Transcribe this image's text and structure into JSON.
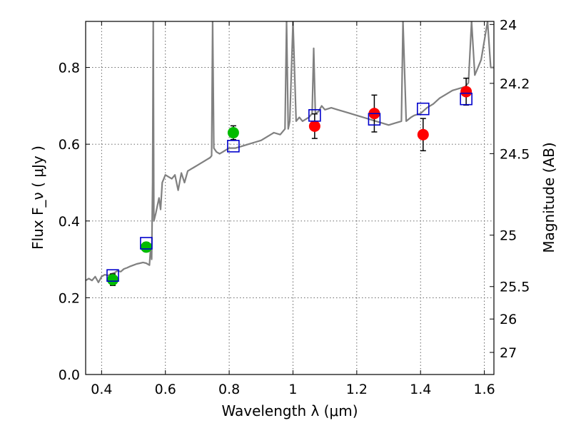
{
  "chart_data": {
    "type": "scatter",
    "title": "",
    "xlabel": "Wavelength  λ (μm)",
    "ylabel": "Flux  F_ν  ( μJy )",
    "y2label": "Magnitude (AB)",
    "xlim": [
      0.35,
      1.63
    ],
    "ylim": [
      0.0,
      0.92
    ],
    "grid": true,
    "x_ticks": [
      0.4,
      0.6,
      0.8,
      1.0,
      1.2,
      1.4,
      1.6
    ],
    "x_tick_labels": [
      "0.4",
      "0.6",
      "0.8",
      "1",
      "1.2",
      "1.4",
      "1.6"
    ],
    "y_ticks": [
      0.0,
      0.2,
      0.4,
      0.6,
      0.8
    ],
    "y_tick_labels": [
      "0.0",
      "0.2",
      "0.4",
      "0.6",
      "0.8"
    ],
    "y2_ticks": [
      {
        "label": "24",
        "value": 24.0
      },
      {
        "label": "24.2",
        "value": 24.2
      },
      {
        "label": "24.5",
        "value": 24.5
      },
      {
        "label": "25",
        "value": 25.0
      },
      {
        "label": "25.5",
        "value": 25.5
      },
      {
        "label": "26",
        "value": 26.0
      },
      {
        "label": "27",
        "value": 27.0
      }
    ],
    "model_spectrum": {
      "color": "#808080",
      "points": [
        [
          0.35,
          0.245
        ],
        [
          0.36,
          0.25
        ],
        [
          0.37,
          0.245
        ],
        [
          0.38,
          0.255
        ],
        [
          0.39,
          0.24
        ],
        [
          0.4,
          0.255
        ],
        [
          0.41,
          0.26
        ],
        [
          0.42,
          0.258
        ],
        [
          0.43,
          0.262
        ],
        [
          0.44,
          0.265
        ],
        [
          0.45,
          0.27
        ],
        [
          0.46,
          0.268
        ],
        [
          0.47,
          0.275
        ],
        [
          0.48,
          0.278
        ],
        [
          0.49,
          0.282
        ],
        [
          0.5,
          0.285
        ],
        [
          0.51,
          0.288
        ],
        [
          0.52,
          0.29
        ],
        [
          0.53,
          0.292
        ],
        [
          0.54,
          0.29
        ],
        [
          0.55,
          0.285
        ],
        [
          0.552,
          0.31
        ],
        [
          0.555,
          0.34
        ],
        [
          0.557,
          0.3
        ],
        [
          0.56,
          0.5
        ],
        [
          0.562,
          0.92
        ],
        [
          0.564,
          0.4
        ],
        [
          0.57,
          0.42
        ],
        [
          0.575,
          0.44
        ],
        [
          0.58,
          0.46
        ],
        [
          0.585,
          0.43
        ],
        [
          0.59,
          0.5
        ],
        [
          0.6,
          0.52
        ],
        [
          0.61,
          0.515
        ],
        [
          0.62,
          0.51
        ],
        [
          0.63,
          0.52
        ],
        [
          0.64,
          0.48
        ],
        [
          0.65,
          0.525
        ],
        [
          0.66,
          0.5
        ],
        [
          0.67,
          0.53
        ],
        [
          0.68,
          0.535
        ],
        [
          0.69,
          0.54
        ],
        [
          0.7,
          0.545
        ],
        [
          0.71,
          0.55
        ],
        [
          0.72,
          0.555
        ],
        [
          0.73,
          0.56
        ],
        [
          0.74,
          0.565
        ],
        [
          0.745,
          0.57
        ],
        [
          0.748,
          0.92
        ],
        [
          0.752,
          0.59
        ],
        [
          0.76,
          0.58
        ],
        [
          0.77,
          0.575
        ],
        [
          0.78,
          0.58
        ],
        [
          0.79,
          0.585
        ],
        [
          0.8,
          0.59
        ],
        [
          0.82,
          0.59
        ],
        [
          0.84,
          0.595
        ],
        [
          0.86,
          0.6
        ],
        [
          0.88,
          0.605
        ],
        [
          0.9,
          0.61
        ],
        [
          0.92,
          0.62
        ],
        [
          0.94,
          0.63
        ],
        [
          0.96,
          0.625
        ],
        [
          0.975,
          0.64
        ],
        [
          0.98,
          0.92
        ],
        [
          0.985,
          0.64
        ],
        [
          0.99,
          0.66
        ],
        [
          1.0,
          0.92
        ],
        [
          1.01,
          0.66
        ],
        [
          1.02,
          0.67
        ],
        [
          1.03,
          0.66
        ],
        [
          1.04,
          0.665
        ],
        [
          1.05,
          0.67
        ],
        [
          1.06,
          0.68
        ],
        [
          1.065,
          0.85
        ],
        [
          1.07,
          0.68
        ],
        [
          1.08,
          0.685
        ],
        [
          1.09,
          0.7
        ],
        [
          1.1,
          0.69
        ],
        [
          1.12,
          0.695
        ],
        [
          1.14,
          0.69
        ],
        [
          1.16,
          0.685
        ],
        [
          1.18,
          0.68
        ],
        [
          1.2,
          0.675
        ],
        [
          1.22,
          0.67
        ],
        [
          1.24,
          0.665
        ],
        [
          1.26,
          0.66
        ],
        [
          1.28,
          0.655
        ],
        [
          1.3,
          0.65
        ],
        [
          1.32,
          0.655
        ],
        [
          1.34,
          0.66
        ],
        [
          1.345,
          0.92
        ],
        [
          1.355,
          0.66
        ],
        [
          1.37,
          0.67
        ],
        [
          1.38,
          0.675
        ],
        [
          1.4,
          0.68
        ],
        [
          1.42,
          0.695
        ],
        [
          1.44,
          0.705
        ],
        [
          1.46,
          0.72
        ],
        [
          1.48,
          0.73
        ],
        [
          1.5,
          0.74
        ],
        [
          1.52,
          0.745
        ],
        [
          1.54,
          0.75
        ],
        [
          1.55,
          0.76
        ],
        [
          1.56,
          0.92
        ],
        [
          1.57,
          0.78
        ],
        [
          1.58,
          0.8
        ],
        [
          1.59,
          0.82
        ],
        [
          1.6,
          0.87
        ],
        [
          1.61,
          0.92
        ],
        [
          1.62,
          0.8
        ],
        [
          1.63,
          0.8
        ]
      ]
    },
    "series": [
      {
        "marker": "circle",
        "color": "#00bb00",
        "points": [
          {
            "x": 0.435,
            "y": 0.247,
            "err": 0.015
          },
          {
            "x": 0.54,
            "y": 0.332,
            "err": 0.012
          },
          {
            "x": 0.813,
            "y": 0.63,
            "err": 0.018
          }
        ]
      },
      {
        "marker": "circle",
        "color": "#ff0000",
        "points": [
          {
            "x": 1.068,
            "y": 0.647,
            "err": 0.032
          },
          {
            "x": 1.255,
            "y": 0.68,
            "err": 0.048
          },
          {
            "x": 1.408,
            "y": 0.625,
            "err": 0.042
          },
          {
            "x": 1.543,
            "y": 0.737,
            "err": 0.035
          }
        ]
      },
      {
        "marker": "open-square",
        "color": "#0000cc",
        "points": [
          {
            "x": 0.435,
            "y": 0.258
          },
          {
            "x": 0.54,
            "y": 0.342
          },
          {
            "x": 0.813,
            "y": 0.595
          },
          {
            "x": 1.068,
            "y": 0.675
          },
          {
            "x": 1.255,
            "y": 0.665
          },
          {
            "x": 1.408,
            "y": 0.692
          },
          {
            "x": 1.543,
            "y": 0.718
          }
        ]
      }
    ]
  }
}
